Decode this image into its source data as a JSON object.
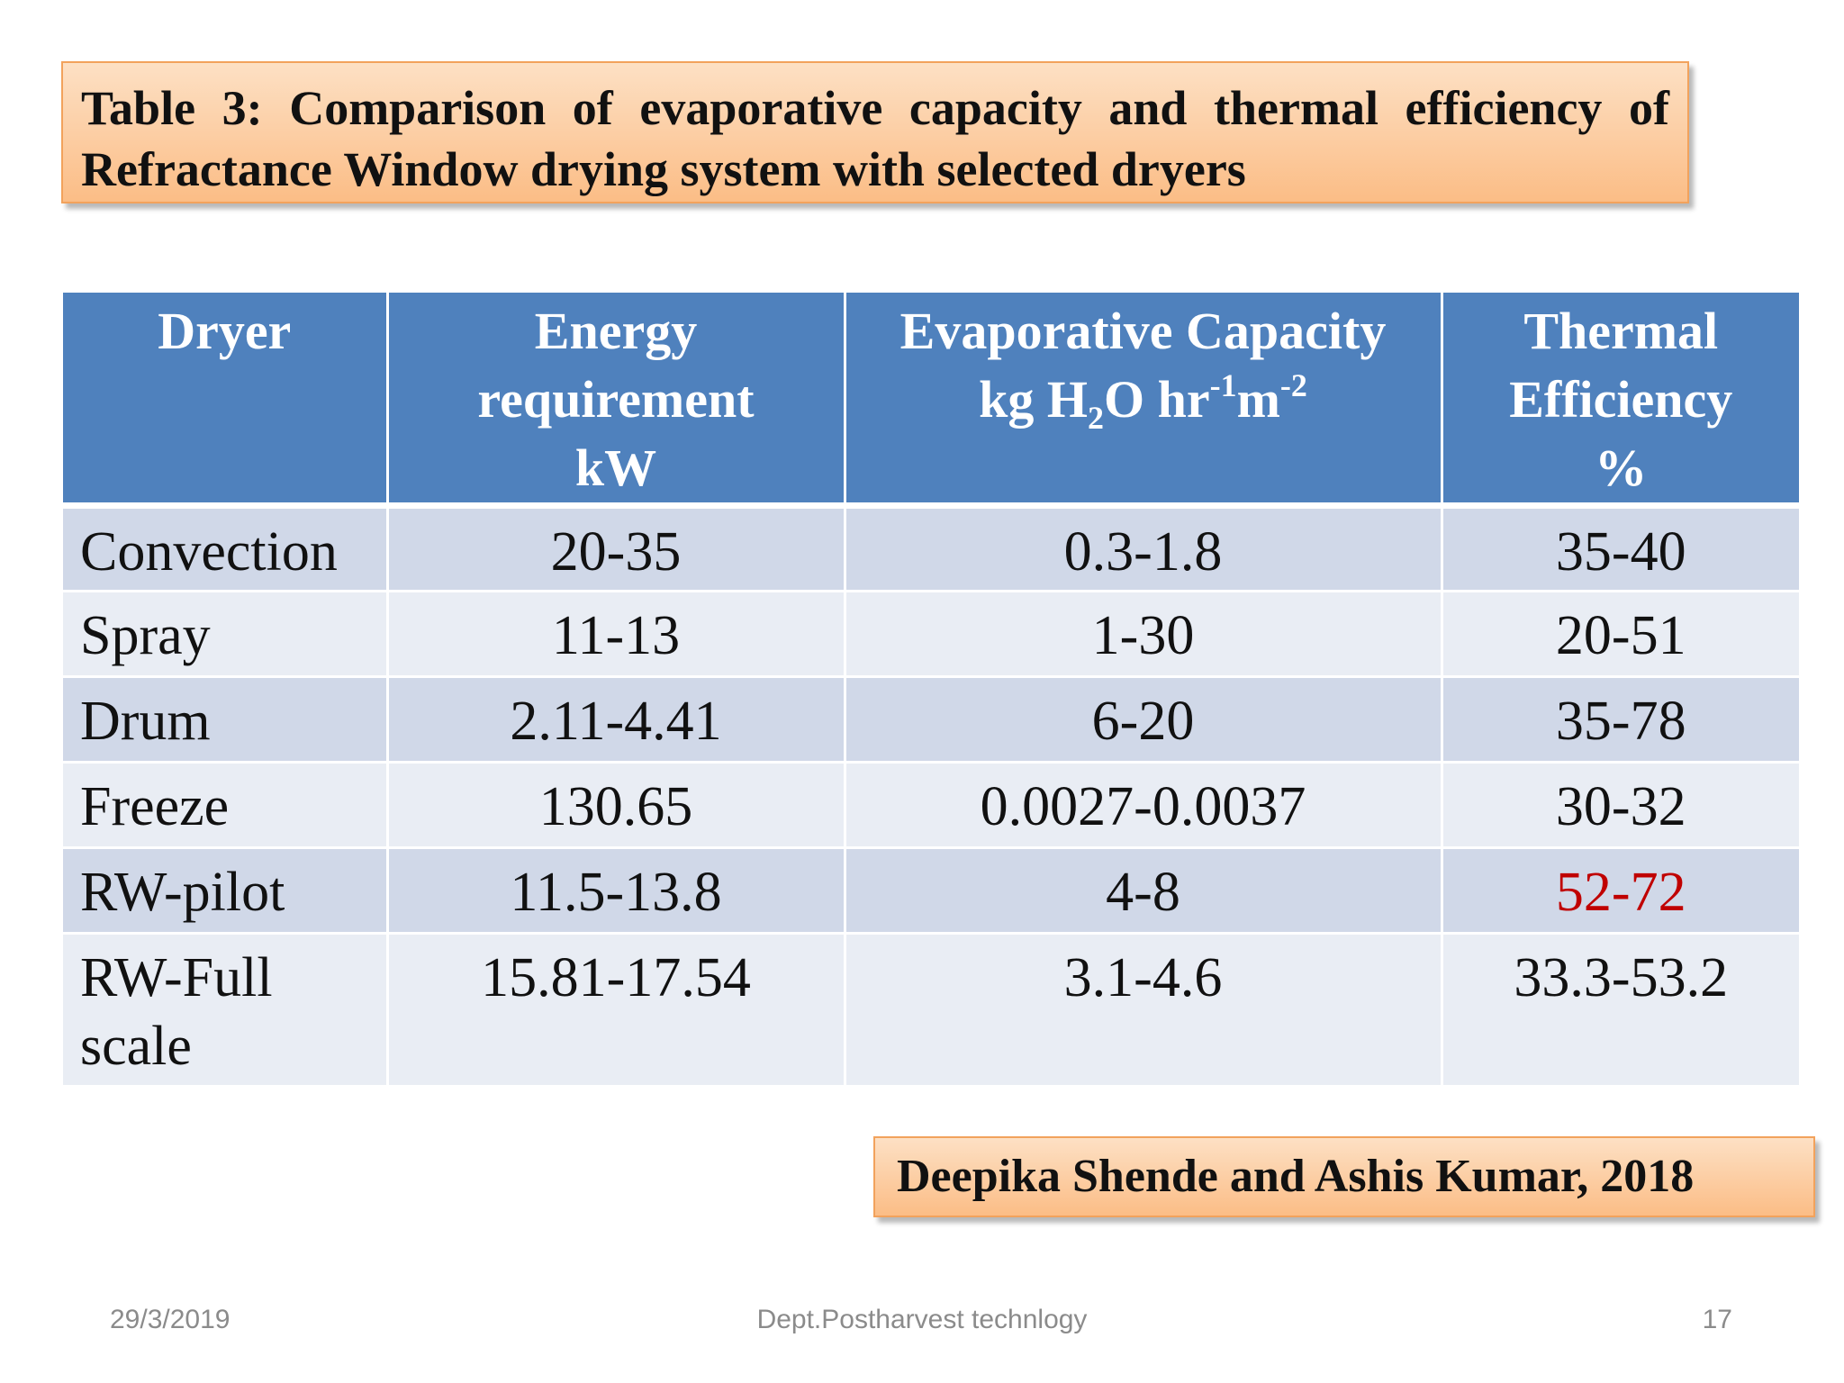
{
  "title": "Table 3: Comparison of evaporative capacity and thermal efficiency of Refractance Window drying system with selected dryers",
  "table": {
    "headers": {
      "dryer": "Dryer",
      "energy": {
        "line1": "Energy",
        "line2": "requirement",
        "unit": "kW"
      },
      "evaporative": {
        "line1": "Evaporative Capacity",
        "unit_kg": "kg H",
        "unit_sub2": "2",
        "unit_o_hr": "O hr",
        "unit_sup_neg1": "-1",
        "unit_m": "m",
        "unit_sup_neg2": "-2"
      },
      "thermal": {
        "line1": "Thermal",
        "line2": "Efficiency",
        "unit": "%"
      }
    },
    "rows": [
      {
        "dryer": "Convection",
        "energy": "20-35",
        "evaporative": "0.3-1.8",
        "thermal": "35-40"
      },
      {
        "dryer": "Spray",
        "energy": "11-13",
        "evaporative": "1-30",
        "thermal": "20-51"
      },
      {
        "dryer": "Drum",
        "energy": "2.11-4.41",
        "evaporative": "6-20",
        "thermal": "35-78"
      },
      {
        "dryer": "Freeze",
        "energy": "130.65",
        "evaporative": "0.0027-0.0037",
        "thermal": "30-32"
      },
      {
        "dryer": "RW-pilot",
        "energy": "11.5-13.8",
        "evaporative": "4-8",
        "thermal": "52-72"
      },
      {
        "dryer": "RW-Full scale",
        "energy": "15.81-17.54",
        "evaporative": "3.1-4.6",
        "thermal": "33.3-53.2"
      }
    ]
  },
  "reference": "Deepika Shende and Ashis Kumar, 2018",
  "footer": {
    "date": "29/3/2019",
    "department": "Dept.Postharvest technlogy",
    "page_number": "17"
  },
  "colors": {
    "header_bg": "#4f81bd",
    "row_odd_bg": "#d0d8e8",
    "row_even_bg": "#e9edf4",
    "highlight_text": "#c00000",
    "callout_fill": "#fbbd86",
    "callout_border": "#f2a25c"
  }
}
